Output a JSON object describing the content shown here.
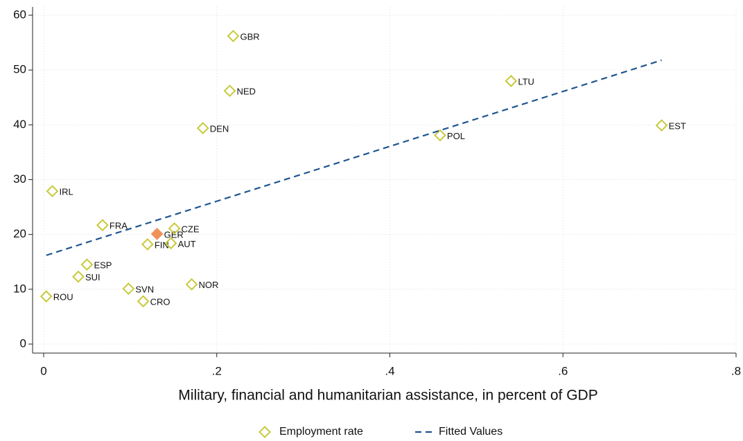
{
  "chart_data": {
    "type": "scatter",
    "x_label": "Military, financial and humanitarian assistance, in percent of GDP",
    "xlim": [
      0,
      0.8
    ],
    "ylim": [
      0,
      60
    ],
    "xticks": [
      0,
      {
        "value": 0.2,
        "label": ".2"
      },
      {
        "value": 0.4,
        "label": ".4"
      },
      {
        "value": 0.6,
        "label": ".6"
      },
      {
        "value": 0.8,
        "label": ".8"
      }
    ],
    "yticks": [
      0,
      10,
      20,
      30,
      40,
      50,
      60
    ],
    "grid": true,
    "legend": "bottom",
    "highlight": "GER",
    "highlight_color": "#f0915a",
    "series": [
      {
        "name": "Employment rate",
        "color": "#c9c93c",
        "labels": [
          "ROU",
          "IRL",
          "FRA",
          "ESP",
          "SUI",
          "SVN",
          "CRO",
          "FIN",
          "GER",
          "CZE",
          "AUT",
          "NOR",
          "DEN",
          "NED",
          "GBR",
          "POL",
          "LTU",
          "EST"
        ],
        "x": [
          0.003,
          0.01,
          0.068,
          0.05,
          0.04,
          0.098,
          0.115,
          0.12,
          0.131,
          0.151,
          0.147,
          0.171,
          0.184,
          0.215,
          0.219,
          0.458,
          0.54,
          0.714
        ],
        "values": [
          8.7,
          27.9,
          21.7,
          14.5,
          12.3,
          10.1,
          7.8,
          18.2,
          20.1,
          21.1,
          18.4,
          10.9,
          39.4,
          46.2,
          56.2,
          38.1,
          48.0,
          39.9
        ]
      },
      {
        "name": "Fitted Values",
        "color": "#1f5590",
        "line": "dashed",
        "x": [
          0.003,
          0.714
        ],
        "values": [
          16.2,
          51.8
        ]
      }
    ]
  }
}
